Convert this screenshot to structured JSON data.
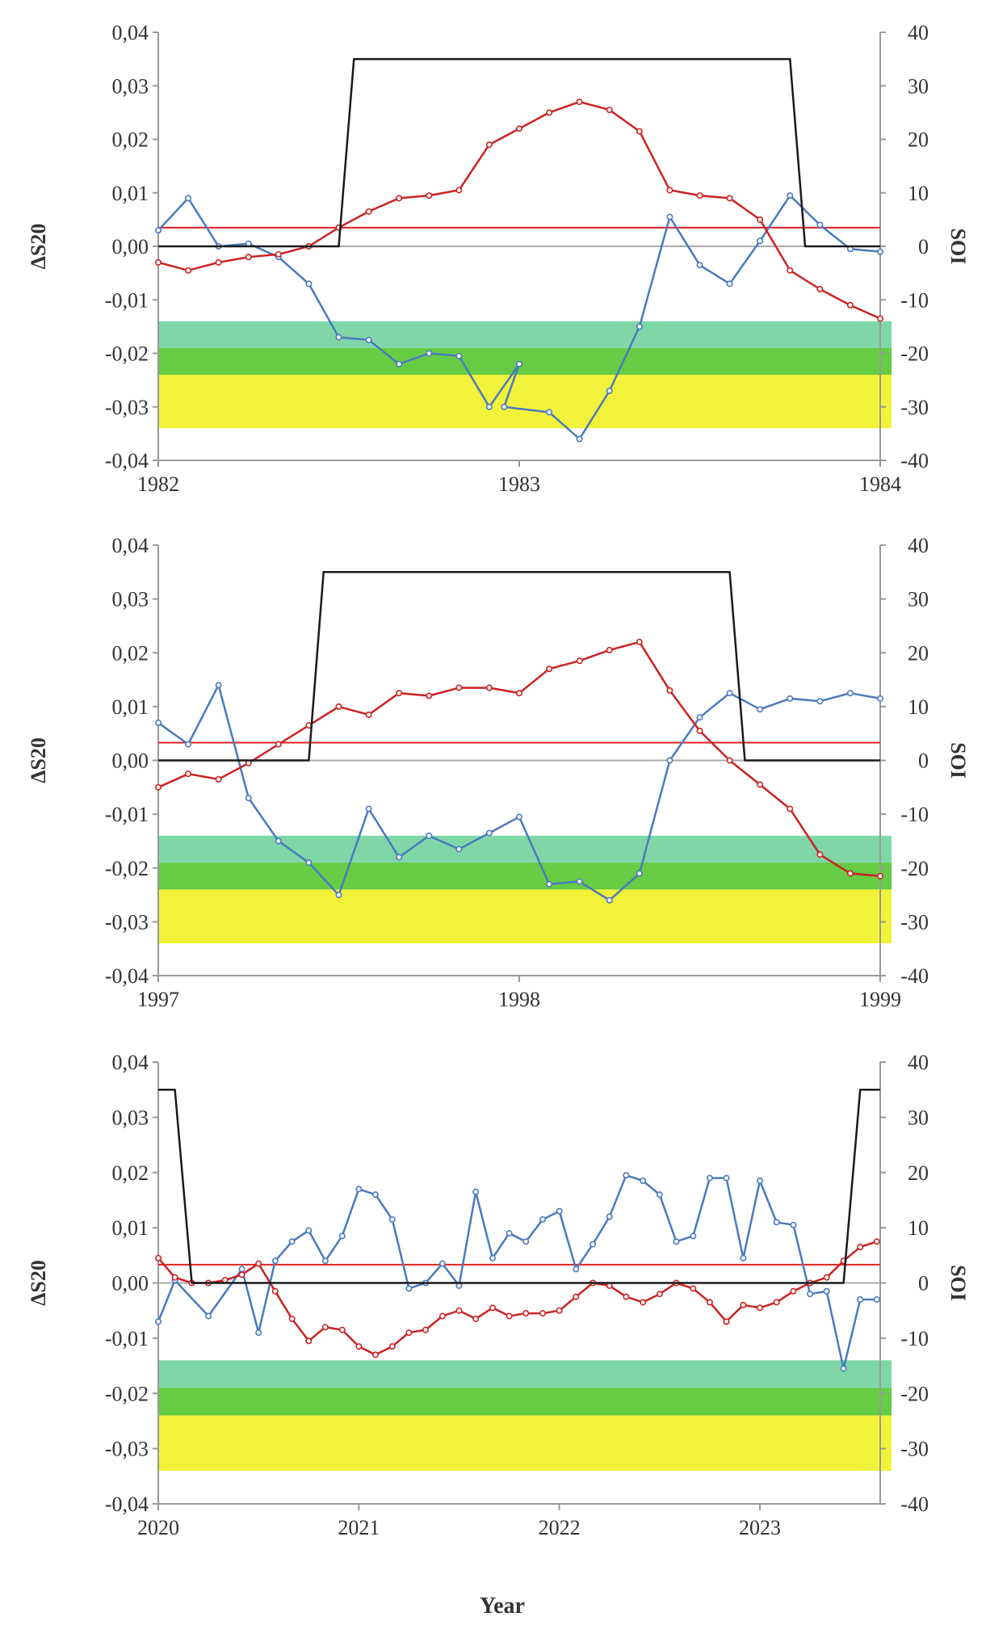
{
  "figure": {
    "xlabel_common": "Year"
  },
  "chart_data": [
    {
      "type": "line",
      "panel": "1982-1984",
      "ylabel_left": "ΔS20",
      "ylabel_right": "SOI",
      "xlim": [
        1982,
        1984
      ],
      "x_ticks": [
        "1982",
        "1983",
        "1984"
      ],
      "ylim_left": [
        -0.04,
        0.04
      ],
      "ylim_right": [
        -40,
        40
      ],
      "left_ticks": [
        "0,04",
        "0,03",
        "0,02",
        "0,01",
        "0,00",
        "-0,01",
        "-0,02",
        "-0,03",
        "-0,04"
      ],
      "right_ticks": [
        "40",
        "30",
        "20",
        "10",
        "0",
        "-10",
        "-20",
        "-30",
        "-40"
      ],
      "bands": [
        {
          "from": -0.019,
          "to": -0.014,
          "color": "#7fd7a8"
        },
        {
          "from": -0.024,
          "to": -0.019,
          "color": "#66cc44"
        },
        {
          "from": -0.034,
          "to": -0.024,
          "color": "#f2f23a"
        }
      ],
      "threshold_left": 0.0035,
      "zero_line": 0,
      "series": [
        {
          "axis": "left",
          "color": "#4a7abf",
          "marker": true,
          "x": [
            1982.0,
            1982.083,
            1982.167,
            1982.25,
            1982.333,
            1982.417,
            1982.5,
            1982.583,
            1982.667,
            1982.75,
            1982.833,
            1982.917,
            1983.0,
            1982.958,
            1983.083,
            1983.167,
            1983.25,
            1983.333,
            1983.417,
            1983.5,
            1983.583,
            1983.667,
            1983.75,
            1983.833,
            1983.917,
            1984.0
          ],
          "y": [
            0.003,
            0.009,
            0.0,
            0.0005,
            -0.002,
            -0.007,
            -0.017,
            -0.0175,
            -0.022,
            -0.02,
            -0.0205,
            -0.03,
            -0.022,
            -0.03,
            -0.031,
            -0.036,
            -0.027,
            -0.015,
            0.0055,
            -0.0035,
            -0.007,
            0.001,
            0.0095,
            0.004,
            -0.0005,
            -0.001
          ]
        },
        {
          "axis": "left",
          "color": "#cc2222",
          "marker": true,
          "x": [
            1982.0,
            1982.083,
            1982.167,
            1982.25,
            1982.333,
            1982.417,
            1982.5,
            1982.583,
            1982.667,
            1982.75,
            1982.833,
            1982.917,
            1983.0,
            1983.083,
            1983.167,
            1983.25,
            1983.333,
            1983.417,
            1983.5,
            1983.583,
            1983.667,
            1983.75,
            1983.833,
            1983.917,
            1984.0
          ],
          "y": [
            -0.003,
            -0.0045,
            -0.003,
            -0.002,
            -0.0015,
            0.0,
            0.0035,
            0.0065,
            0.009,
            0.0095,
            0.0105,
            0.019,
            0.022,
            0.025,
            0.027,
            0.0255,
            0.0215,
            0.0105,
            0.0095,
            0.009,
            0.005,
            -0.0045,
            -0.008,
            -0.011,
            -0.0135
          ]
        },
        {
          "axis": "right",
          "color": "#1a1a1a",
          "marker": false,
          "x": [
            1982.0,
            1982.5,
            1982.542,
            1983.75,
            1983.792,
            1984.0
          ],
          "y": [
            0,
            0,
            35,
            35,
            0,
            0
          ]
        }
      ]
    },
    {
      "type": "line",
      "panel": "1997-1999",
      "ylabel_left": "ΔS20",
      "ylabel_right": "SOI",
      "xlim": [
        1997,
        1999
      ],
      "x_ticks": [
        "1997",
        "1998",
        "1999"
      ],
      "ylim_left": [
        -0.04,
        0.04
      ],
      "ylim_right": [
        -40,
        40
      ],
      "left_ticks": [
        "0,04",
        "0,03",
        "0,02",
        "0,01",
        "0,00",
        "-0,01",
        "-0,02",
        "-0,03",
        "-0,04"
      ],
      "right_ticks": [
        "40",
        "30",
        "20",
        "10",
        "0",
        "-10",
        "-20",
        "-30",
        "-40"
      ],
      "bands": [
        {
          "from": -0.019,
          "to": -0.014,
          "color": "#7fd7a8"
        },
        {
          "from": -0.024,
          "to": -0.019,
          "color": "#66cc44"
        },
        {
          "from": -0.034,
          "to": -0.024,
          "color": "#f2f23a"
        }
      ],
      "threshold_left": 0.0033,
      "zero_line": 0,
      "series": [
        {
          "axis": "left",
          "color": "#4a7abf",
          "marker": true,
          "x": [
            1997.0,
            1997.083,
            1997.167,
            1997.25,
            1997.333,
            1997.417,
            1997.5,
            1997.583,
            1997.667,
            1997.75,
            1997.833,
            1997.917,
            1998.0,
            1998.083,
            1998.167,
            1998.25,
            1998.333,
            1998.417,
            1998.5,
            1998.583,
            1998.667,
            1998.75,
            1998.833,
            1998.917,
            1999.0
          ],
          "y": [
            0.007,
            0.003,
            0.014,
            -0.007,
            -0.015,
            -0.019,
            -0.025,
            -0.009,
            -0.018,
            -0.014,
            -0.0165,
            -0.0135,
            -0.0105,
            -0.023,
            -0.0225,
            -0.026,
            -0.021,
            0.0,
            0.008,
            0.0125,
            0.0095,
            0.0115,
            0.011,
            0.0125,
            0.0115
          ]
        },
        {
          "axis": "left",
          "color": "#cc2222",
          "marker": true,
          "x": [
            1997.0,
            1997.083,
            1997.167,
            1997.25,
            1997.333,
            1997.417,
            1997.5,
            1997.583,
            1997.667,
            1997.75,
            1997.833,
            1997.917,
            1998.0,
            1998.083,
            1998.167,
            1998.25,
            1998.333,
            1998.417,
            1998.5,
            1998.583,
            1998.667,
            1998.75,
            1998.833,
            1998.917,
            1999.0
          ],
          "y": [
            -0.005,
            -0.0025,
            -0.0035,
            -0.0005,
            0.003,
            0.0065,
            0.01,
            0.0085,
            0.0125,
            0.012,
            0.0135,
            0.0135,
            0.0125,
            0.017,
            0.0185,
            0.0205,
            0.022,
            0.013,
            0.0055,
            0.0,
            -0.0045,
            -0.009,
            -0.0175,
            -0.021,
            -0.0215
          ]
        },
        {
          "axis": "right",
          "color": "#1a1a1a",
          "marker": false,
          "x": [
            1997.0,
            1997.417,
            1997.458,
            1998.583,
            1998.625,
            1999.0
          ],
          "y": [
            0,
            0,
            35,
            35,
            0,
            0
          ]
        }
      ]
    },
    {
      "type": "line",
      "panel": "2020-2023",
      "ylabel_left": "ΔS20",
      "ylabel_right": "SOI",
      "xlabel": "Year",
      "xlim": [
        2020,
        2023.6
      ],
      "x_ticks": [
        "2020",
        "2021",
        "2022",
        "2023"
      ],
      "ylim_left": [
        -0.04,
        0.04
      ],
      "ylim_right": [
        -40,
        40
      ],
      "left_ticks": [
        "0,04",
        "0,03",
        "0,02",
        "0,01",
        "0,00",
        "-0,01",
        "-0,02",
        "-0,03",
        "-0,04"
      ],
      "right_ticks": [
        "40",
        "30",
        "20",
        "10",
        "0",
        "-10",
        "-20",
        "-30",
        "-40"
      ],
      "bands": [
        {
          "from": -0.019,
          "to": -0.014,
          "color": "#7fd7a8"
        },
        {
          "from": -0.024,
          "to": -0.019,
          "color": "#66cc44"
        },
        {
          "from": -0.034,
          "to": -0.024,
          "color": "#f2f23a"
        }
      ],
      "threshold_left": 0.0033,
      "zero_line": 0,
      "series": [
        {
          "axis": "left",
          "color": "#4a7abf",
          "marker": true,
          "x": [
            2020.0,
            2020.083,
            2020.25,
            2020.417,
            2020.5,
            2020.583,
            2020.667,
            2020.75,
            2020.833,
            2020.917,
            2021.0,
            2021.083,
            2021.167,
            2021.25,
            2021.333,
            2021.417,
            2021.5,
            2021.583,
            2021.667,
            2021.75,
            2021.833,
            2021.917,
            2022.0,
            2022.083,
            2022.167,
            2022.25,
            2022.333,
            2022.417,
            2022.5,
            2022.583,
            2022.667,
            2022.75,
            2022.833,
            2022.917,
            2023.0,
            2023.083,
            2023.167,
            2023.25,
            2023.333,
            2023.417,
            2023.5,
            2023.583
          ],
          "y": [
            -0.007,
            0.0005,
            -0.006,
            0.0025,
            -0.009,
            0.004,
            0.0075,
            0.0095,
            0.004,
            0.0085,
            0.017,
            0.016,
            0.0115,
            -0.001,
            0.0,
            0.0035,
            -0.0005,
            0.0165,
            0.0045,
            0.009,
            0.0075,
            0.0115,
            0.013,
            0.0025,
            0.007,
            0.012,
            0.0195,
            0.0185,
            0.016,
            0.0075,
            0.0085,
            0.019,
            0.019,
            0.0045,
            0.0185,
            0.011,
            0.0105,
            -0.002,
            -0.0015,
            -0.0155,
            -0.003,
            -0.003
          ]
        },
        {
          "axis": "left",
          "color": "#cc2222",
          "marker": true,
          "x": [
            2020.0,
            2020.083,
            2020.167,
            2020.25,
            2020.333,
            2020.417,
            2020.5,
            2020.583,
            2020.667,
            2020.75,
            2020.833,
            2020.917,
            2021.0,
            2021.083,
            2021.167,
            2021.25,
            2021.333,
            2021.417,
            2021.5,
            2021.583,
            2021.667,
            2021.75,
            2021.833,
            2021.917,
            2022.0,
            2022.083,
            2022.167,
            2022.25,
            2022.333,
            2022.417,
            2022.5,
            2022.583,
            2022.667,
            2022.75,
            2022.833,
            2022.917,
            2023.0,
            2023.083,
            2023.167,
            2023.25,
            2023.333,
            2023.417,
            2023.5,
            2023.583
          ],
          "y": [
            0.0045,
            0.001,
            0.0,
            0.0,
            0.0005,
            0.0015,
            0.0035,
            -0.0015,
            -0.0065,
            -0.0105,
            -0.008,
            -0.0085,
            -0.0115,
            -0.013,
            -0.0115,
            -0.009,
            -0.0085,
            -0.006,
            -0.005,
            -0.0065,
            -0.0045,
            -0.006,
            -0.0055,
            -0.0055,
            -0.005,
            -0.0025,
            0.0,
            -0.0005,
            -0.0025,
            -0.0035,
            -0.002,
            0.0,
            -0.001,
            -0.0035,
            -0.007,
            -0.004,
            -0.0045,
            -0.0035,
            -0.0015,
            0.0,
            0.001,
            0.004,
            0.0065,
            0.0075
          ]
        },
        {
          "axis": "right",
          "color": "#1a1a1a",
          "marker": false,
          "x": [
            2020.0,
            2020.083,
            2020.167,
            2023.417,
            2023.5,
            2023.6
          ],
          "y": [
            35,
            35,
            0,
            0,
            35,
            35
          ]
        }
      ]
    }
  ]
}
